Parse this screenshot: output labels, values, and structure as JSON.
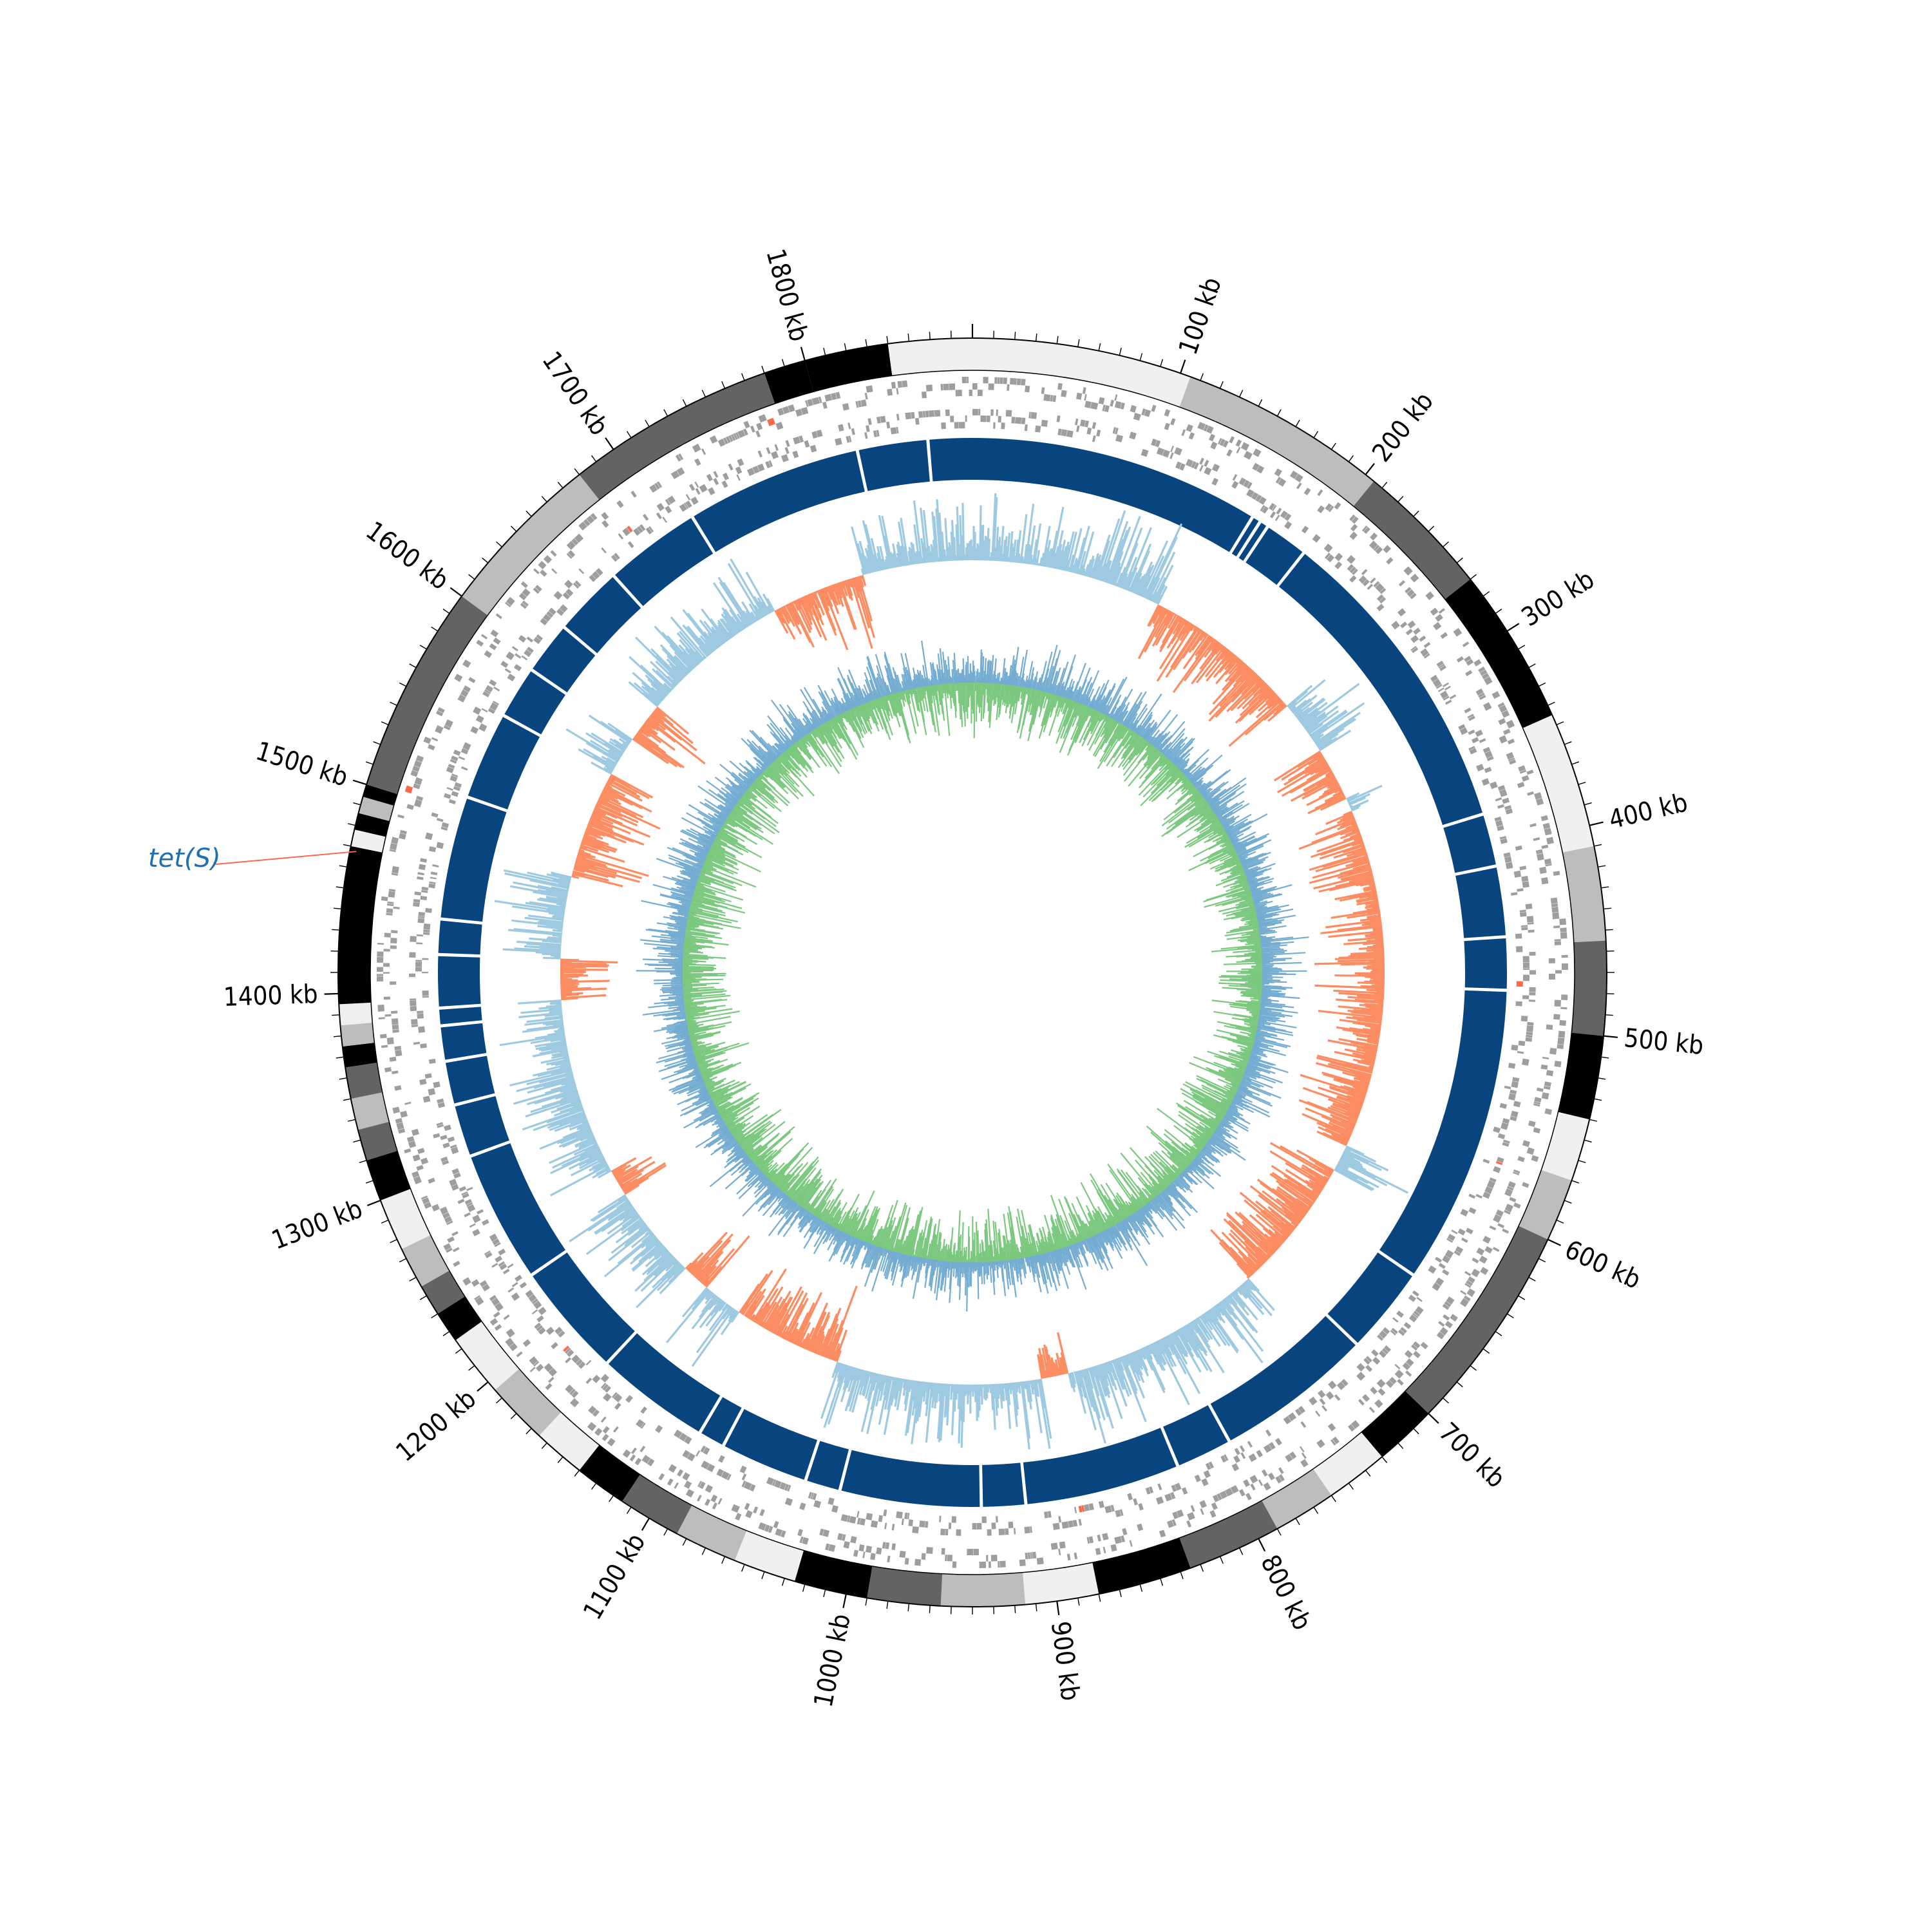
{
  "genome": {
    "size_kb": 1880,
    "major_tick_step_kb": 100,
    "minor_tick_step_kb": 10
  },
  "tick_labels": [
    "100 kb",
    "200 kb",
    "300 kb",
    "400 kb",
    "500 kb",
    "600 kb",
    "700 kb",
    "800 kb",
    "900 kb",
    "1000 kb",
    "1100 kb",
    "1200 kb",
    "1300 kb",
    "1400 kb",
    "1500 kb",
    "1600 kb",
    "1700 kb",
    "1800 kb"
  ],
  "contig_ring": {
    "palette": [
      "#f0f0f0",
      "#bdbdbd",
      "#636363",
      "#000000"
    ],
    "segments_kb": [
      [
        0,
        105,
        0
      ],
      [
        105,
        205,
        1
      ],
      [
        205,
        270,
        2
      ],
      [
        270,
        345,
        3
      ],
      [
        345,
        410,
        0
      ],
      [
        410,
        455,
        1
      ],
      [
        455,
        500,
        2
      ],
      [
        500,
        540,
        3
      ],
      [
        540,
        570,
        0
      ],
      [
        570,
        600,
        1
      ],
      [
        600,
        700,
        2
      ],
      [
        700,
        730,
        3
      ],
      [
        730,
        760,
        0
      ],
      [
        760,
        790,
        1
      ],
      [
        790,
        835,
        2
      ],
      [
        835,
        880,
        3
      ],
      [
        880,
        915,
        0
      ],
      [
        915,
        955,
        1
      ],
      [
        955,
        990,
        2
      ],
      [
        990,
        1025,
        3
      ],
      [
        1025,
        1055,
        0
      ],
      [
        1055,
        1085,
        1
      ],
      [
        1085,
        1115,
        2
      ],
      [
        1115,
        1140,
        3
      ],
      [
        1140,
        1165,
        0
      ],
      [
        1165,
        1195,
        1
      ],
      [
        1195,
        1225,
        0
      ],
      [
        1225,
        1240,
        3
      ],
      [
        1240,
        1255,
        2
      ],
      [
        1255,
        1275,
        1
      ],
      [
        1275,
        1300,
        0
      ],
      [
        1300,
        1320,
        3
      ],
      [
        1320,
        1335,
        2
      ],
      [
        1335,
        1350,
        1
      ],
      [
        1350,
        1365,
        2
      ],
      [
        1365,
        1375,
        3
      ],
      [
        1375,
        1385,
        1
      ],
      [
        1385,
        1395,
        0
      ],
      [
        1395,
        1470,
        3
      ],
      [
        1470,
        1478,
        0
      ],
      [
        1478,
        1486,
        3
      ],
      [
        1486,
        1494,
        1
      ],
      [
        1494,
        1500,
        3
      ],
      [
        1500,
        1600,
        2
      ],
      [
        1600,
        1680,
        1
      ],
      [
        1680,
        1780,
        2
      ],
      [
        1780,
        1800,
        3
      ],
      [
        1800,
        1840,
        3
      ],
      [
        1840,
        1880,
        0
      ]
    ]
  },
  "contig_blue_ring": {
    "color": "#08457e",
    "gaps_kb": [
      165,
      170,
      175,
      200,
      380,
      410,
      450,
      480,
      650,
      700,
      790,
      822,
      910,
      935,
      1015,
      1035,
      1085,
      1100,
      1165,
      1230,
      1305,
      1335,
      1360,
      1380,
      1390,
      1420,
      1440,
      1510,
      1560,
      1590,
      1620,
      1660,
      1715,
      1815,
      1855
    ]
  },
  "annotation": {
    "gene": "tet(S)",
    "position_kb": 1468,
    "label_color": "#1f6fb4",
    "line_color": "#fb6a4a"
  },
  "tracks": {
    "forward_strand_color": "#9e9e9e",
    "reverse_strand_color": "#9e9e9e",
    "highlight_gene_color": "#fb6a4a",
    "gc_skew_positive_color": "#9ecae1",
    "gc_skew_negative_color": "#fc8d62",
    "gc_content_above_color": "#74add1",
    "gc_content_below_color": "#7bc87f"
  }
}
